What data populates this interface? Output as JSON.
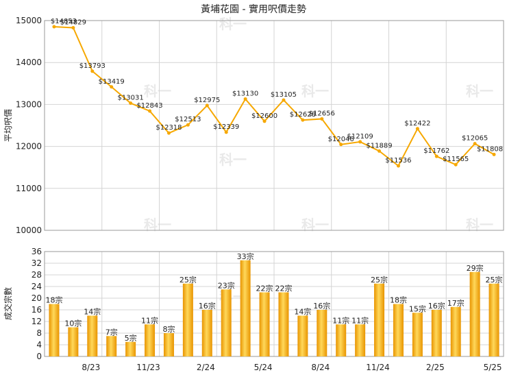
{
  "title": "黃埔花園 - 實用呎價走勢",
  "watermark_text": "科一",
  "colors": {
    "line": "#f6a800",
    "bar_light": "#ffd85a",
    "bar_dark": "#e89400",
    "grid": "#d4d4d4"
  },
  "chart_data": [
    {
      "type": "line",
      "ylabel": "平均呎價",
      "ylim": [
        10000,
        15000
      ],
      "yticks": [
        10000,
        11000,
        12000,
        13000,
        14000,
        15000
      ],
      "grid": true,
      "values": [
        14853,
        14829,
        13793,
        13419,
        13031,
        12843,
        12318,
        12513,
        12975,
        12339,
        13130,
        12600,
        13105,
        12628,
        12656,
        12046,
        12109,
        11889,
        11536,
        12422,
        11762,
        11565,
        12065,
        11808
      ],
      "labels": [
        "$14853",
        "$14829",
        "$13793",
        "$13419",
        "$13031",
        "$12843",
        "$12318",
        "$12513",
        "$12975",
        "$12339",
        "$13130",
        "$12600",
        "$13105",
        "$12628",
        "$12656",
        "$12046",
        "$12109",
        "$11889",
        "$11536",
        "$12422",
        "$11762",
        "$11565",
        "$12065",
        "$11808"
      ]
    },
    {
      "type": "bar",
      "ylabel": "成交宗數",
      "ylim": [
        0,
        36
      ],
      "yticks": [
        0,
        4,
        8,
        12,
        16,
        20,
        24,
        28,
        32,
        36
      ],
      "grid": true,
      "values": [
        18,
        10,
        14,
        7,
        5,
        11,
        8,
        25,
        16,
        23,
        33,
        22,
        22,
        14,
        16,
        11,
        11,
        25,
        18,
        15,
        16,
        17,
        29,
        25
      ],
      "labels": [
        "18宗",
        "10宗",
        "14宗",
        "7宗",
        "5宗",
        "11宗",
        "8宗",
        "25宗",
        "16宗",
        "23宗",
        "33宗",
        "22宗",
        "22宗",
        "14宗",
        "16宗",
        "11宗",
        "11宗",
        "25宗",
        "18宗",
        "15宗",
        "16宗",
        "17宗",
        "29宗",
        "25宗"
      ]
    }
  ],
  "x_axis": {
    "ticks": [
      "8/23",
      "11/23",
      "2/24",
      "5/24",
      "8/24",
      "11/24",
      "2/25",
      "5/25"
    ],
    "tick_indices": [
      2,
      5,
      8,
      11,
      14,
      17,
      20,
      23
    ]
  }
}
